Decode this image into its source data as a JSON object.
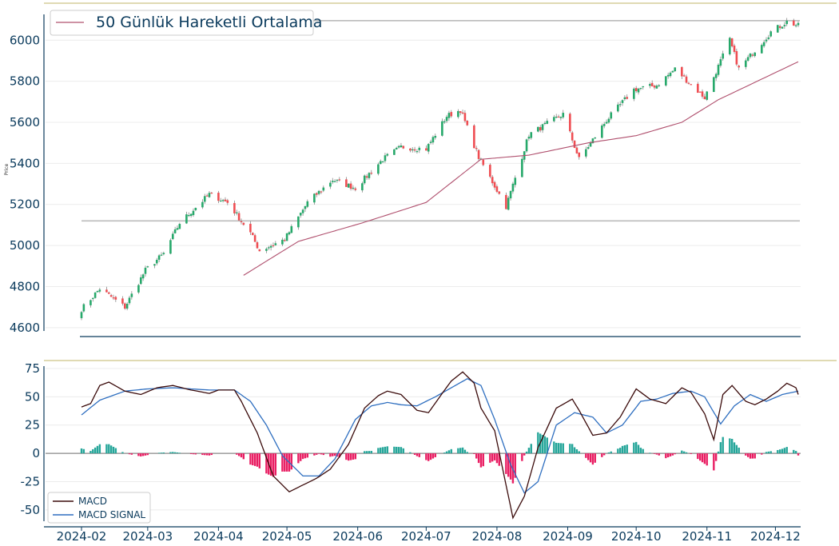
{
  "chart_data": [
    {
      "type": "candlestick",
      "panel": "price",
      "ylabel": "Price",
      "ylim": [
        4580,
        6110
      ],
      "yticks": [
        4600,
        4800,
        5000,
        5200,
        5400,
        5600,
        5800,
        6000
      ],
      "legend": {
        "entries": [
          "50 Günlük Hareketli Ortalama"
        ],
        "placement": "top-left"
      },
      "horizontal_lines": [
        5120,
        6095
      ],
      "colors": {
        "up": "#26a86a",
        "down": "#ef4d52",
        "ma": "#b0506e",
        "hline": "#bbbbbb"
      },
      "anchors": [
        [
          "2024-02-01",
          4690
        ],
        [
          "2024-02-09",
          4790
        ],
        [
          "2024-02-20",
          4700
        ],
        [
          "2024-02-29",
          4880
        ],
        [
          "2024-03-08",
          4960
        ],
        [
          "2024-03-15",
          5110
        ],
        [
          "2024-03-28",
          5250
        ],
        [
          "2024-04-05",
          5210
        ],
        [
          "2024-04-15",
          5060
        ],
        [
          "2024-04-19",
          4975
        ],
        [
          "2024-04-30",
          5030
        ],
        [
          "2024-05-10",
          5210
        ],
        [
          "2024-05-21",
          5320
        ],
        [
          "2024-05-31",
          5280
        ],
        [
          "2024-06-12",
          5420
        ],
        [
          "2024-06-20",
          5480
        ],
        [
          "2024-07-01",
          5470
        ],
        [
          "2024-07-10",
          5630
        ],
        [
          "2024-07-16",
          5660
        ],
        [
          "2024-07-24",
          5430
        ],
        [
          "2024-08-05",
          5190
        ],
        [
          "2024-08-15",
          5540
        ],
        [
          "2024-08-30",
          5640
        ],
        [
          "2024-09-06",
          5420
        ],
        [
          "2024-09-18",
          5610
        ],
        [
          "2024-09-30",
          5760
        ],
        [
          "2024-10-10",
          5780
        ],
        [
          "2024-10-18",
          5860
        ],
        [
          "2024-10-31",
          5720
        ],
        [
          "2024-11-11",
          6000
        ],
        [
          "2024-11-15",
          5860
        ],
        [
          "2024-11-29",
          6040
        ],
        [
          "2024-12-06",
          6090
        ],
        [
          "2024-12-11",
          6070
        ]
      ],
      "ma_anchors": [
        [
          "2024-04-12",
          4855
        ],
        [
          "2024-05-06",
          5020
        ],
        [
          "2024-06-03",
          5110
        ],
        [
          "2024-07-01",
          5210
        ],
        [
          "2024-07-25",
          5420
        ],
        [
          "2024-08-15",
          5440
        ],
        [
          "2024-09-10",
          5500
        ],
        [
          "2024-10-01",
          5535
        ],
        [
          "2024-10-21",
          5600
        ],
        [
          "2024-11-06",
          5710
        ],
        [
          "2024-12-11",
          5895
        ]
      ]
    },
    {
      "type": "line+bar",
      "panel": "macd",
      "ylim": [
        -60,
        75
      ],
      "yticks": [
        -50,
        -25,
        0,
        25,
        50,
        75
      ],
      "xticks": [
        "2024-02",
        "2024-03",
        "2024-04",
        "2024-05",
        "2024-06",
        "2024-07",
        "2024-08",
        "2024-09",
        "2024-10",
        "2024-11",
        "2024-12"
      ],
      "legend": {
        "entries": [
          "MACD",
          "MACD SIGNAL"
        ],
        "placement": "bottom-left"
      },
      "colors": {
        "macd": "#3a0a0a",
        "signal": "#2f6fc0",
        "hist_pos": "#26a69a",
        "hist_neg": "#e91e63"
      },
      "macd_anchors": [
        [
          "2024-02-01",
          41
        ],
        [
          "2024-02-05",
          44
        ],
        [
          "2024-02-09",
          60
        ],
        [
          "2024-02-13",
          63
        ],
        [
          "2024-02-20",
          55
        ],
        [
          "2024-02-27",
          52
        ],
        [
          "2024-03-05",
          58
        ],
        [
          "2024-03-12",
          60
        ],
        [
          "2024-03-20",
          56
        ],
        [
          "2024-03-28",
          53
        ],
        [
          "2024-04-01",
          56
        ],
        [
          "2024-04-08",
          56
        ],
        [
          "2024-04-11",
          46
        ],
        [
          "2024-04-18",
          18
        ],
        [
          "2024-04-25",
          -20
        ],
        [
          "2024-05-02",
          -34
        ],
        [
          "2024-05-08",
          -28
        ],
        [
          "2024-05-14",
          -22
        ],
        [
          "2024-05-20",
          -14
        ],
        [
          "2024-05-28",
          8
        ],
        [
          "2024-06-04",
          40
        ],
        [
          "2024-06-10",
          51
        ],
        [
          "2024-06-14",
          55
        ],
        [
          "2024-06-20",
          52
        ],
        [
          "2024-06-27",
          38
        ],
        [
          "2024-07-02",
          36
        ],
        [
          "2024-07-08",
          53
        ],
        [
          "2024-07-12",
          64
        ],
        [
          "2024-07-17",
          72
        ],
        [
          "2024-07-22",
          62
        ],
        [
          "2024-07-25",
          40
        ],
        [
          "2024-07-31",
          20
        ],
        [
          "2024-08-05",
          -28
        ],
        [
          "2024-08-08",
          -57
        ],
        [
          "2024-08-13",
          -38
        ],
        [
          "2024-08-19",
          5
        ],
        [
          "2024-08-27",
          40
        ],
        [
          "2024-09-03",
          48
        ],
        [
          "2024-09-06",
          38
        ],
        [
          "2024-09-12",
          16
        ],
        [
          "2024-09-18",
          18
        ],
        [
          "2024-09-24",
          32
        ],
        [
          "2024-10-01",
          57
        ],
        [
          "2024-10-07",
          48
        ],
        [
          "2024-10-14",
          44
        ],
        [
          "2024-10-21",
          58
        ],
        [
          "2024-10-25",
          54
        ],
        [
          "2024-10-31",
          35
        ],
        [
          "2024-11-04",
          12
        ],
        [
          "2024-11-08",
          52
        ],
        [
          "2024-11-12",
          60
        ],
        [
          "2024-11-18",
          46
        ],
        [
          "2024-11-22",
          43
        ],
        [
          "2024-11-27",
          48
        ],
        [
          "2024-12-02",
          55
        ],
        [
          "2024-12-06",
          62
        ],
        [
          "2024-12-10",
          58
        ],
        [
          "2024-12-11",
          52
        ]
      ],
      "signal_anchors": [
        [
          "2024-02-01",
          34
        ],
        [
          "2024-02-09",
          47
        ],
        [
          "2024-02-20",
          55
        ],
        [
          "2024-03-01",
          57
        ],
        [
          "2024-03-12",
          58
        ],
        [
          "2024-03-28",
          56
        ],
        [
          "2024-04-08",
          56
        ],
        [
          "2024-04-15",
          46
        ],
        [
          "2024-04-22",
          25
        ],
        [
          "2024-04-29",
          -2
        ],
        [
          "2024-05-08",
          -20
        ],
        [
          "2024-05-15",
          -20
        ],
        [
          "2024-05-22",
          -5
        ],
        [
          "2024-05-31",
          30
        ],
        [
          "2024-06-07",
          42
        ],
        [
          "2024-06-14",
          45
        ],
        [
          "2024-06-20",
          43
        ],
        [
          "2024-06-27",
          42
        ],
        [
          "2024-07-05",
          50
        ],
        [
          "2024-07-12",
          58
        ],
        [
          "2024-07-19",
          66
        ],
        [
          "2024-07-25",
          60
        ],
        [
          "2024-07-31",
          30
        ],
        [
          "2024-08-07",
          -10
        ],
        [
          "2024-08-13",
          -35
        ],
        [
          "2024-08-19",
          -25
        ],
        [
          "2024-08-27",
          25
        ],
        [
          "2024-09-04",
          36
        ],
        [
          "2024-09-12",
          32
        ],
        [
          "2024-09-18",
          18
        ],
        [
          "2024-09-25",
          25
        ],
        [
          "2024-10-03",
          46
        ],
        [
          "2024-10-10",
          48
        ],
        [
          "2024-10-17",
          53
        ],
        [
          "2024-10-25",
          55
        ],
        [
          "2024-10-31",
          50
        ],
        [
          "2024-11-07",
          26
        ],
        [
          "2024-11-13",
          42
        ],
        [
          "2024-11-20",
          52
        ],
        [
          "2024-11-27",
          46
        ],
        [
          "2024-12-04",
          52
        ],
        [
          "2024-12-11",
          55
        ]
      ]
    }
  ]
}
